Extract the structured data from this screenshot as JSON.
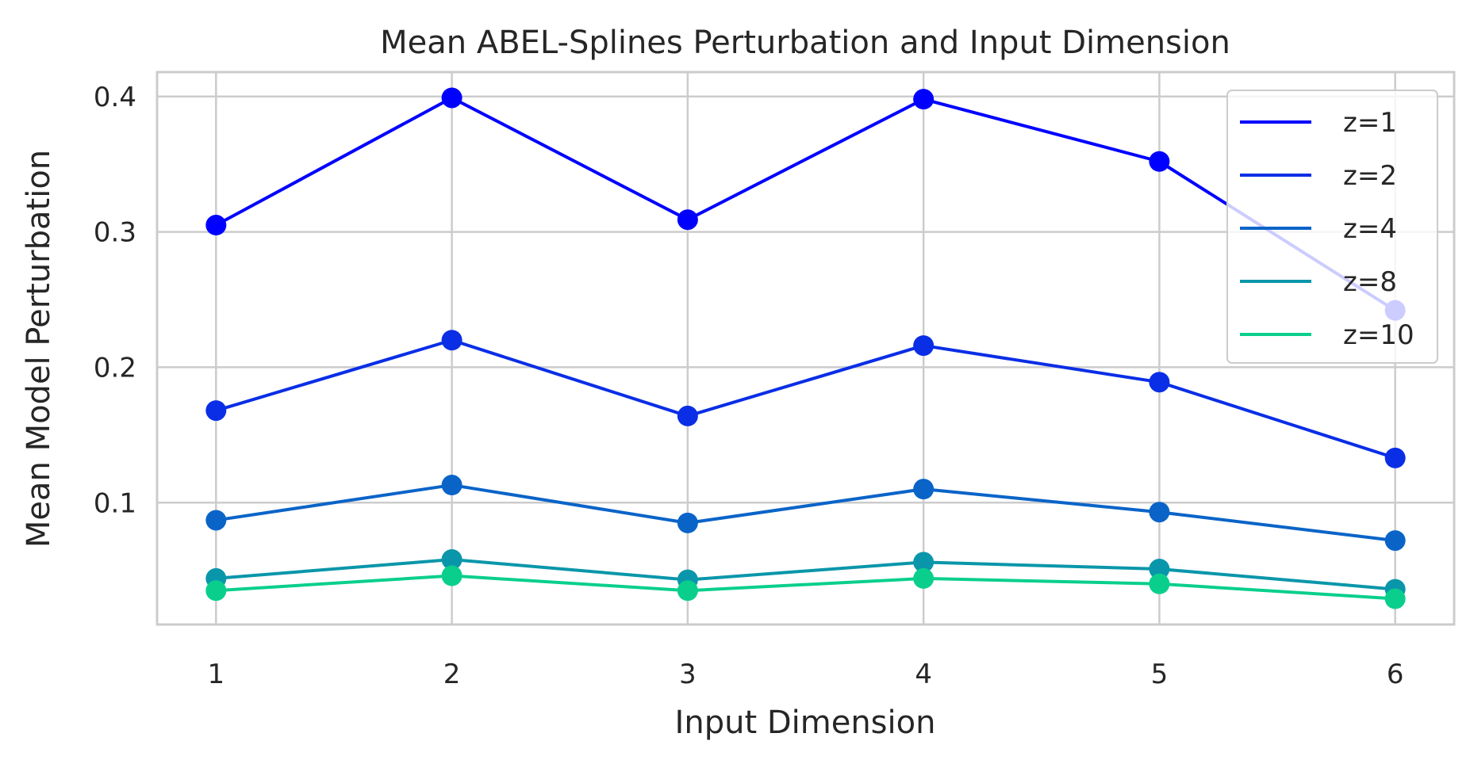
{
  "chart_data": {
    "type": "line",
    "title": "Mean ABEL-Splines Perturbation and Input Dimension",
    "xlabel": "Input Dimension",
    "ylabel": "Mean Model Perturbation",
    "x": [
      1,
      2,
      3,
      4,
      5,
      6
    ],
    "xlim": [
      0.75,
      6.25
    ],
    "ylim": [
      0.01,
      0.418
    ],
    "xticks": [
      "1",
      "2",
      "3",
      "4",
      "5",
      "6"
    ],
    "yticks": [
      "0.1",
      "0.2",
      "0.3",
      "0.4"
    ],
    "grid": true,
    "legend_position": "top-right",
    "series": [
      {
        "name": "z=1",
        "color": "#0000ff",
        "values": [
          0.305,
          0.399,
          0.309,
          0.398,
          0.352,
          0.242
        ]
      },
      {
        "name": "z=2",
        "color": "#0a2ee6",
        "values": [
          0.168,
          0.22,
          0.164,
          0.216,
          0.189,
          0.133
        ]
      },
      {
        "name": "z=4",
        "color": "#0a64c8",
        "values": [
          0.087,
          0.113,
          0.085,
          0.11,
          0.093,
          0.072
        ]
      },
      {
        "name": "z=8",
        "color": "#0a96aa",
        "values": [
          0.044,
          0.058,
          0.043,
          0.056,
          0.051,
          0.036
        ]
      },
      {
        "name": "z=10",
        "color": "#0acf8c",
        "values": [
          0.035,
          0.046,
          0.035,
          0.044,
          0.04,
          0.029
        ]
      }
    ]
  }
}
